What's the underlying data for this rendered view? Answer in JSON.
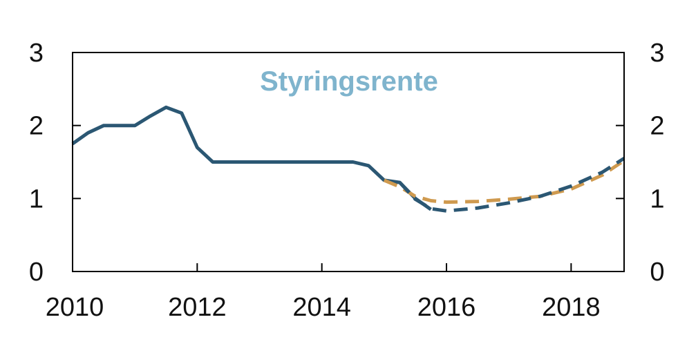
{
  "colors": {
    "axis": "#000000",
    "historical": "#2b5773",
    "projection_current": "#2b5773",
    "projection_previous": "#cf9a4f",
    "title": "#7fb4cd"
  },
  "chart_data": {
    "type": "line",
    "title": "Styringsrente",
    "xlabel": "",
    "ylabel": "",
    "xlim": [
      2010,
      2018.85
    ],
    "ylim": [
      0,
      3
    ],
    "x_ticks": [
      2010,
      2012,
      2014,
      2016,
      2018
    ],
    "x_tick_labels": [
      "2010",
      "2012",
      "2014",
      "2016",
      "2018"
    ],
    "y_ticks": [
      0,
      1,
      2,
      3
    ],
    "y_tick_labels": [
      "0",
      "1",
      "2",
      "3"
    ],
    "grid": false,
    "legend": "none",
    "series": [
      {
        "style": "solid",
        "color_key": "historical",
        "points": [
          [
            2010.0,
            1.75
          ],
          [
            2010.25,
            1.9
          ],
          [
            2010.5,
            2.0
          ],
          [
            2010.75,
            2.0
          ],
          [
            2011.0,
            2.0
          ],
          [
            2011.25,
            2.13
          ],
          [
            2011.5,
            2.25
          ],
          [
            2011.75,
            2.17
          ],
          [
            2012.0,
            1.7
          ],
          [
            2012.25,
            1.5
          ],
          [
            2012.5,
            1.5
          ],
          [
            2013.0,
            1.5
          ],
          [
            2013.5,
            1.5
          ],
          [
            2014.0,
            1.5
          ],
          [
            2014.5,
            1.5
          ],
          [
            2014.75,
            1.45
          ],
          [
            2015.0,
            1.25
          ],
          [
            2015.25,
            1.22
          ],
          [
            2015.5,
            1.0
          ],
          [
            2015.75,
            0.85
          ]
        ]
      },
      {
        "style": "dashed",
        "color_key": "projection_previous",
        "points": [
          [
            2015.0,
            1.25
          ],
          [
            2015.25,
            1.16
          ],
          [
            2015.5,
            1.03
          ],
          [
            2015.75,
            0.97
          ],
          [
            2016.0,
            0.95
          ],
          [
            2016.5,
            0.96
          ],
          [
            2017.0,
            0.99
          ],
          [
            2017.5,
            1.03
          ],
          [
            2018.0,
            1.13
          ],
          [
            2018.5,
            1.32
          ],
          [
            2018.85,
            1.52
          ]
        ]
      },
      {
        "style": "dashed",
        "color_key": "projection_current",
        "points": [
          [
            2015.25,
            1.22
          ],
          [
            2015.5,
            0.99
          ],
          [
            2015.75,
            0.86
          ],
          [
            2016.0,
            0.83
          ],
          [
            2016.5,
            0.87
          ],
          [
            2017.0,
            0.94
          ],
          [
            2017.5,
            1.03
          ],
          [
            2018.0,
            1.17
          ],
          [
            2018.5,
            1.36
          ],
          [
            2018.85,
            1.55
          ]
        ]
      }
    ]
  }
}
